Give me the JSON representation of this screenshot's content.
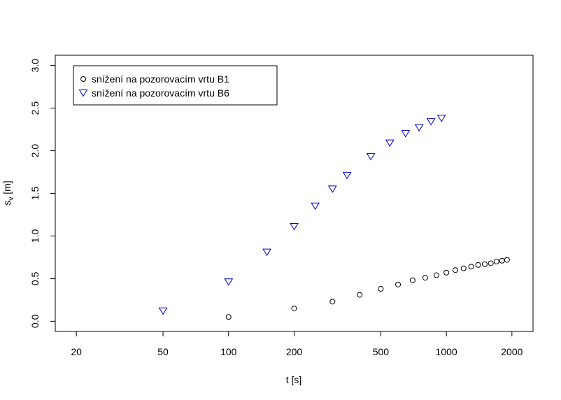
{
  "chart_data": {
    "type": "scatter",
    "xlabel": "t [s]",
    "ylabel_main": "s",
    "ylabel_sub": "v",
    "ylabel_unit": " [m]",
    "xscale": "log",
    "xlim": [
      16,
      2500
    ],
    "ylim": [
      -0.12,
      3.12
    ],
    "xticks": [
      20,
      50,
      100,
      200,
      500,
      1000,
      2000
    ],
    "xtick_labels": [
      "20",
      "50",
      "100",
      "200",
      "500",
      "1000",
      "2000"
    ],
    "yticks": [
      0.0,
      0.5,
      1.0,
      1.5,
      2.0,
      2.5,
      3.0
    ],
    "ytick_labels": [
      "0.0",
      "0.5",
      "1.0",
      "1.5",
      "2.0",
      "2.5",
      "3.0"
    ],
    "grid": false,
    "legend_position": "top-left",
    "series": [
      {
        "name": "snížení na pozorovacím vrtu B1",
        "marker": "circle",
        "color": "#000000",
        "x": [
          100,
          200,
          300,
          400,
          500,
          600,
          700,
          800,
          900,
          1000,
          1100,
          1200,
          1300,
          1400,
          1500,
          1600,
          1700,
          1800,
          1900
        ],
        "y": [
          0.05,
          0.15,
          0.23,
          0.31,
          0.38,
          0.43,
          0.48,
          0.51,
          0.54,
          0.57,
          0.6,
          0.62,
          0.64,
          0.66,
          0.67,
          0.68,
          0.7,
          0.71,
          0.72
        ]
      },
      {
        "name": "snížení na pozorovacím vrtu B6",
        "marker": "triangle-down",
        "color": "#0000cc",
        "x": [
          50,
          100,
          150,
          200,
          250,
          300,
          350,
          450,
          550,
          650,
          750,
          850,
          950
        ],
        "y": [
          0.12,
          0.46,
          0.81,
          1.11,
          1.35,
          1.55,
          1.71,
          1.93,
          2.09,
          2.2,
          2.27,
          2.34,
          2.38
        ]
      }
    ]
  }
}
